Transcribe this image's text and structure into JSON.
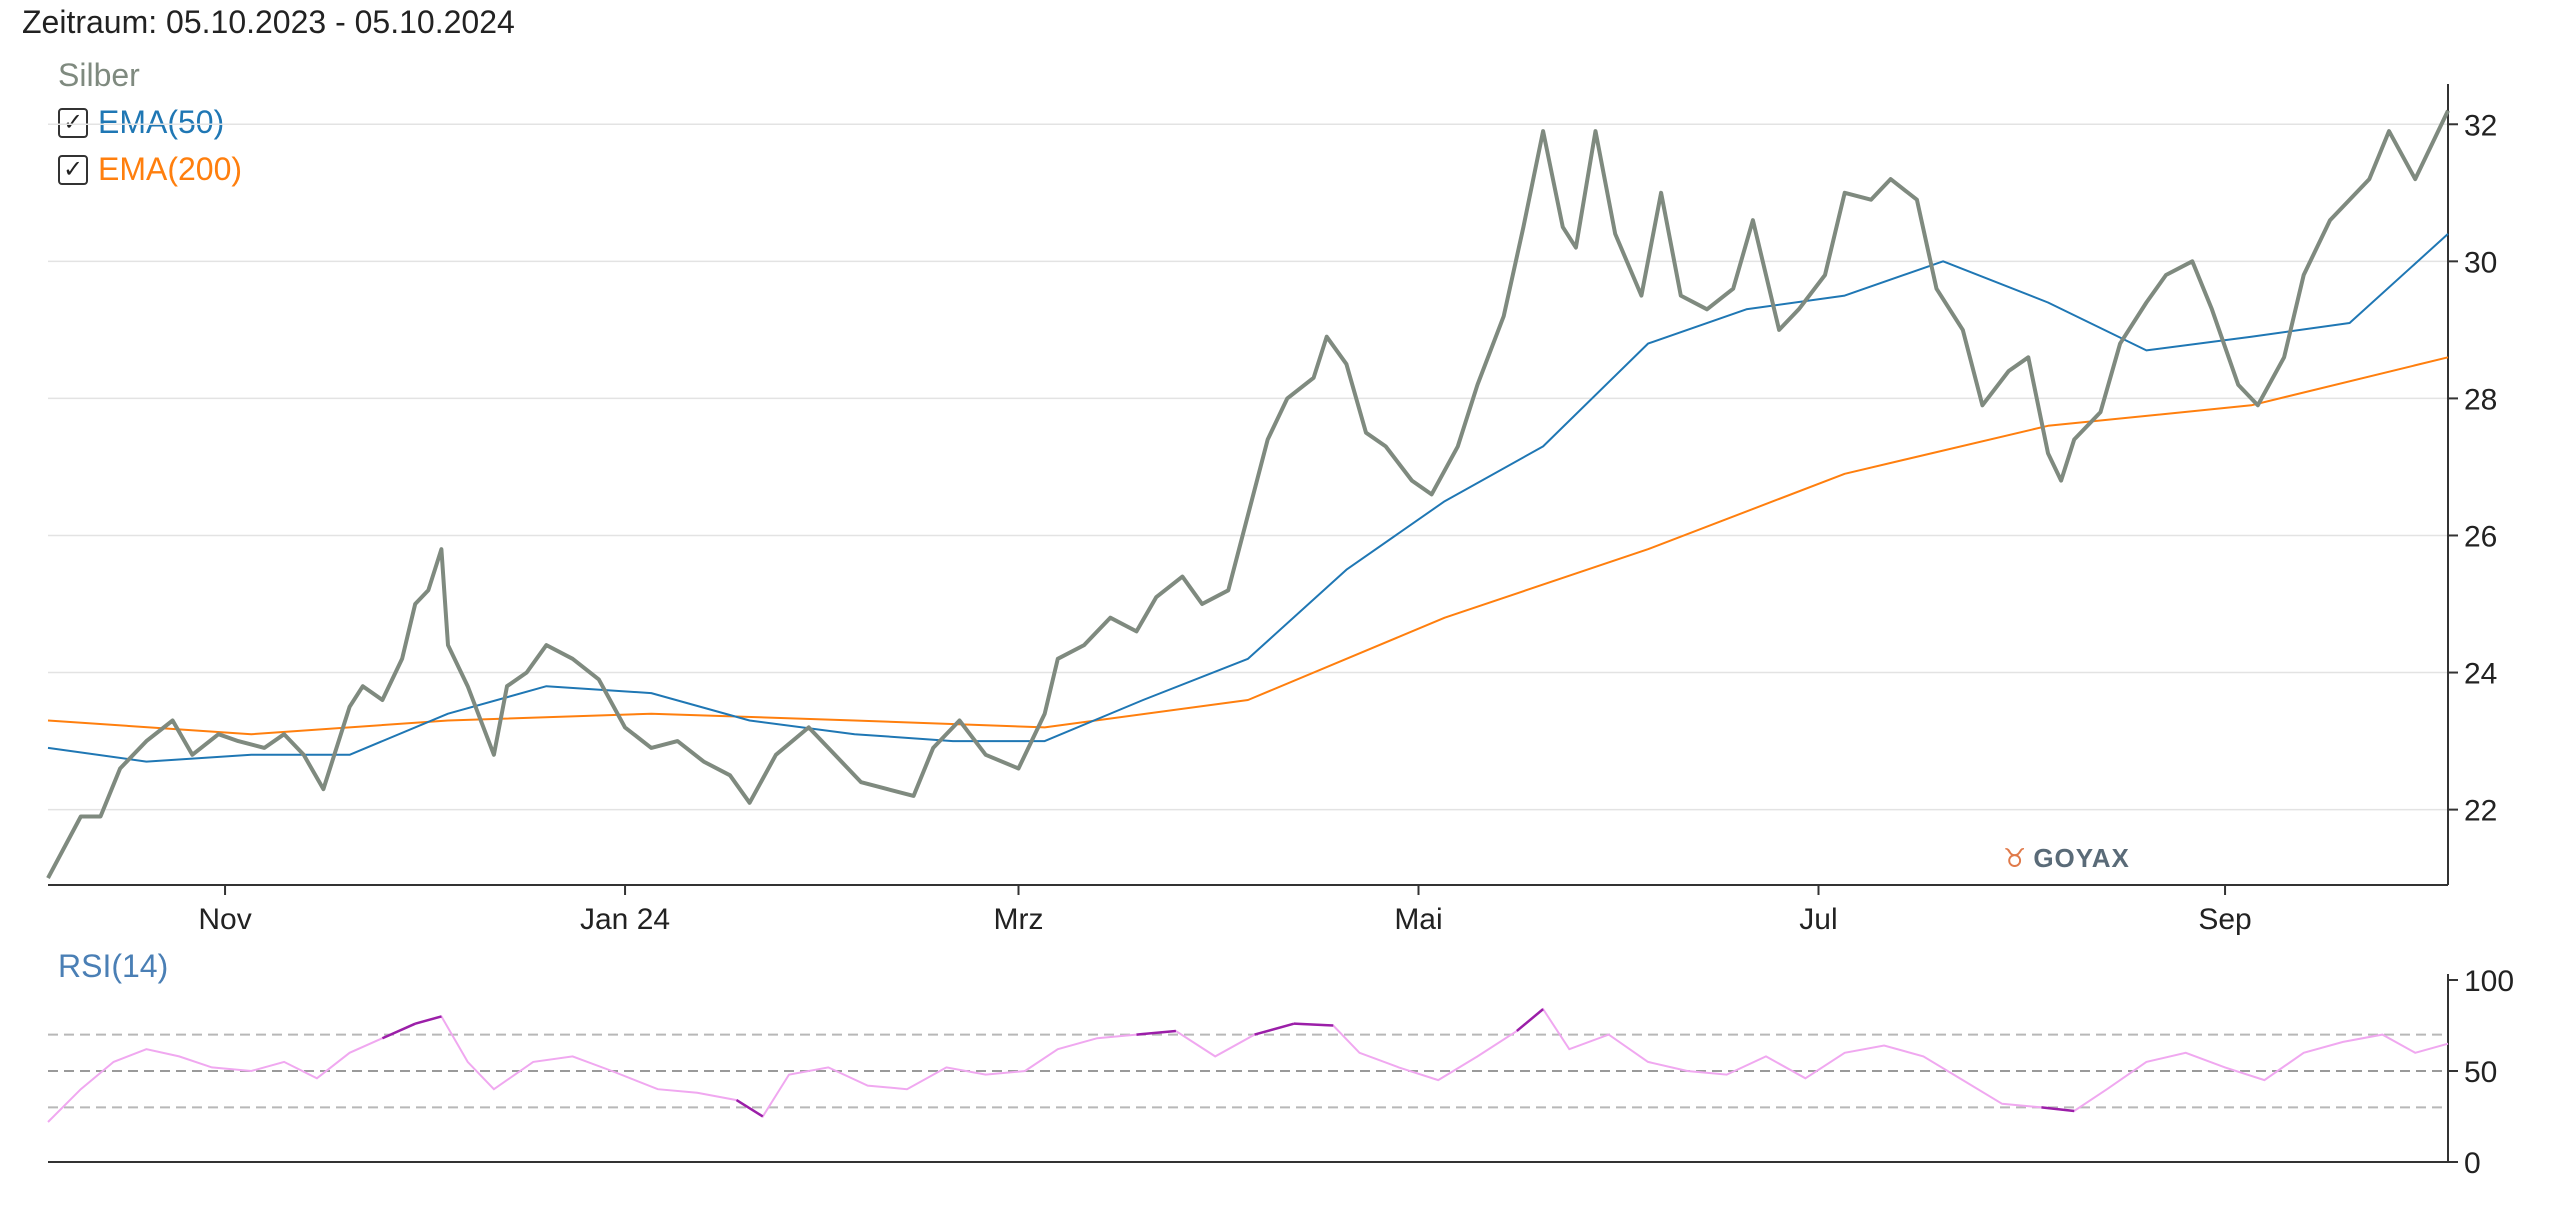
{
  "header": {
    "period": "Zeitraum: 05.10.2023 - 05.10.2024"
  },
  "legend": {
    "main": "Silber",
    "ema50": {
      "label": "EMA(50)",
      "checked": true,
      "color": "#1f77b4"
    },
    "ema200": {
      "label": "EMA(200)",
      "checked": true,
      "color": "#ff7f0e"
    }
  },
  "rsi_panel": {
    "label": "RSI(14)"
  },
  "watermark": {
    "text": "GOYAX",
    "icon": "bull-icon"
  },
  "colors": {
    "price": "#7f8a7f",
    "ema50": "#1f77b4",
    "ema200": "#ff7f0e",
    "rsi": "#f0a8f0",
    "rsi_extreme": "#9b1fa8",
    "grid": "#e3e3e3",
    "axis": "#333333"
  },
  "chart_data": [
    {
      "type": "line",
      "title": "Zeitraum: 05.10.2023 - 05.10.2024",
      "x_tick_labels": [
        "Nov",
        "Jan 24",
        "Mrz",
        "Mai",
        "Jul",
        "Sep"
      ],
      "y_tick_labels": [
        "22",
        "24",
        "26",
        "28",
        "30",
        "32"
      ],
      "ylim": [
        20.9,
        32.5
      ],
      "y_axis_position": "right",
      "grid": true,
      "legend_position": "top-left",
      "series": [
        {
          "name": "Silber",
          "color": "#7f8a7f",
          "points": [
            [
              "2023-10-05",
              21.0
            ],
            [
              "2023-10-10",
              21.9
            ],
            [
              "2023-10-13",
              21.9
            ],
            [
              "2023-10-16",
              22.6
            ],
            [
              "2023-10-20",
              23.0
            ],
            [
              "2023-10-24",
              23.3
            ],
            [
              "2023-10-27",
              22.8
            ],
            [
              "2023-10-31",
              23.1
            ],
            [
              "2023-11-03",
              23.0
            ],
            [
              "2023-11-07",
              22.9
            ],
            [
              "2023-11-10",
              23.1
            ],
            [
              "2023-11-13",
              22.8
            ],
            [
              "2023-11-16",
              22.3
            ],
            [
              "2023-11-20",
              23.5
            ],
            [
              "2023-11-22",
              23.8
            ],
            [
              "2023-11-25",
              23.6
            ],
            [
              "2023-11-28",
              24.2
            ],
            [
              "2023-11-30",
              25.0
            ],
            [
              "2023-12-02",
              25.2
            ],
            [
              "2023-12-04",
              25.8
            ],
            [
              "2023-12-05",
              24.4
            ],
            [
              "2023-12-08",
              23.8
            ],
            [
              "2023-12-12",
              22.8
            ],
            [
              "2023-12-14",
              23.8
            ],
            [
              "2023-12-17",
              24.0
            ],
            [
              "2023-12-20",
              24.4
            ],
            [
              "2023-12-24",
              24.2
            ],
            [
              "2023-12-28",
              23.9
            ],
            [
              "2024-01-01",
              23.2
            ],
            [
              "2024-01-05",
              22.9
            ],
            [
              "2024-01-09",
              23.0
            ],
            [
              "2024-01-13",
              22.7
            ],
            [
              "2024-01-17",
              22.5
            ],
            [
              "2024-01-20",
              22.1
            ],
            [
              "2024-01-24",
              22.8
            ],
            [
              "2024-01-29",
              23.2
            ],
            [
              "2024-02-02",
              22.8
            ],
            [
              "2024-02-06",
              22.4
            ],
            [
              "2024-02-10",
              22.3
            ],
            [
              "2024-02-14",
              22.2
            ],
            [
              "2024-02-17",
              22.9
            ],
            [
              "2024-02-21",
              23.3
            ],
            [
              "2024-02-25",
              22.8
            ],
            [
              "2024-03-01",
              22.6
            ],
            [
              "2024-03-05",
              23.4
            ],
            [
              "2024-03-07",
              24.2
            ],
            [
              "2024-03-11",
              24.4
            ],
            [
              "2024-03-15",
              24.8
            ],
            [
              "2024-03-19",
              24.6
            ],
            [
              "2024-03-22",
              25.1
            ],
            [
              "2024-03-26",
              25.4
            ],
            [
              "2024-03-29",
              25.0
            ],
            [
              "2024-04-02",
              25.2
            ],
            [
              "2024-04-05",
              26.3
            ],
            [
              "2024-04-08",
              27.4
            ],
            [
              "2024-04-11",
              28.0
            ],
            [
              "2024-04-15",
              28.3
            ],
            [
              "2024-04-17",
              28.9
            ],
            [
              "2024-04-20",
              28.5
            ],
            [
              "2024-04-23",
              27.5
            ],
            [
              "2024-04-26",
              27.3
            ],
            [
              "2024-04-30",
              26.8
            ],
            [
              "2024-05-03",
              26.6
            ],
            [
              "2024-05-07",
              27.3
            ],
            [
              "2024-05-10",
              28.2
            ],
            [
              "2024-05-14",
              29.2
            ],
            [
              "2024-05-17",
              30.5
            ],
            [
              "2024-05-20",
              31.9
            ],
            [
              "2024-05-23",
              30.5
            ],
            [
              "2024-05-25",
              30.2
            ],
            [
              "2024-05-28",
              31.9
            ],
            [
              "2024-05-31",
              30.4
            ],
            [
              "2024-06-04",
              29.5
            ],
            [
              "2024-06-07",
              31.0
            ],
            [
              "2024-06-10",
              29.5
            ],
            [
              "2024-06-14",
              29.3
            ],
            [
              "2024-06-18",
              29.6
            ],
            [
              "2024-06-21",
              30.6
            ],
            [
              "2024-06-25",
              29.0
            ],
            [
              "2024-06-28",
              29.3
            ],
            [
              "2024-07-02",
              29.8
            ],
            [
              "2024-07-05",
              31.0
            ],
            [
              "2024-07-09",
              30.9
            ],
            [
              "2024-07-12",
              31.2
            ],
            [
              "2024-07-16",
              30.9
            ],
            [
              "2024-07-19",
              29.6
            ],
            [
              "2024-07-23",
              29.0
            ],
            [
              "2024-07-26",
              27.9
            ],
            [
              "2024-07-30",
              28.4
            ],
            [
              "2024-08-02",
              28.6
            ],
            [
              "2024-08-05",
              27.2
            ],
            [
              "2024-08-07",
              26.8
            ],
            [
              "2024-08-09",
              27.4
            ],
            [
              "2024-08-13",
              27.8
            ],
            [
              "2024-08-16",
              28.8
            ],
            [
              "2024-08-20",
              29.4
            ],
            [
              "2024-08-23",
              29.8
            ],
            [
              "2024-08-27",
              30.0
            ],
            [
              "2024-08-30",
              29.3
            ],
            [
              "2024-09-03",
              28.2
            ],
            [
              "2024-09-06",
              27.9
            ],
            [
              "2024-09-10",
              28.6
            ],
            [
              "2024-09-13",
              29.8
            ],
            [
              "2024-09-17",
              30.6
            ],
            [
              "2024-09-20",
              30.9
            ],
            [
              "2024-09-23",
              31.2
            ],
            [
              "2024-09-26",
              31.9
            ],
            [
              "2024-09-30",
              31.2
            ],
            [
              "2024-10-03",
              31.8
            ],
            [
              "2024-10-05",
              32.2
            ]
          ]
        },
        {
          "name": "EMA(50)",
          "color": "#1f77b4",
          "points": [
            [
              "2023-10-05",
              22.9
            ],
            [
              "2023-10-20",
              22.7
            ],
            [
              "2023-11-05",
              22.8
            ],
            [
              "2023-11-20",
              22.8
            ],
            [
              "2023-12-05",
              23.4
            ],
            [
              "2023-12-20",
              23.8
            ],
            [
              "2024-01-05",
              23.7
            ],
            [
              "2024-01-20",
              23.3
            ],
            [
              "2024-02-05",
              23.1
            ],
            [
              "2024-02-20",
              23.0
            ],
            [
              "2024-03-05",
              23.0
            ],
            [
              "2024-03-20",
              23.6
            ],
            [
              "2024-04-05",
              24.2
            ],
            [
              "2024-04-20",
              25.5
            ],
            [
              "2024-05-05",
              26.5
            ],
            [
              "2024-05-20",
              27.3
            ],
            [
              "2024-06-05",
              28.8
            ],
            [
              "2024-06-20",
              29.3
            ],
            [
              "2024-07-05",
              29.5
            ],
            [
              "2024-07-20",
              30.0
            ],
            [
              "2024-08-05",
              29.4
            ],
            [
              "2024-08-20",
              28.7
            ],
            [
              "2024-09-05",
              28.9
            ],
            [
              "2024-09-20",
              29.1
            ],
            [
              "2024-10-05",
              30.4
            ]
          ]
        },
        {
          "name": "EMA(200)",
          "color": "#ff7f0e",
          "points": [
            [
              "2023-10-05",
              23.3
            ],
            [
              "2023-11-05",
              23.1
            ],
            [
              "2023-12-05",
              23.3
            ],
            [
              "2024-01-05",
              23.4
            ],
            [
              "2024-02-05",
              23.3
            ],
            [
              "2024-03-05",
              23.2
            ],
            [
              "2024-04-05",
              23.6
            ],
            [
              "2024-05-05",
              24.8
            ],
            [
              "2024-06-05",
              25.8
            ],
            [
              "2024-07-05",
              26.9
            ],
            [
              "2024-08-05",
              27.6
            ],
            [
              "2024-09-05",
              27.9
            ],
            [
              "2024-10-05",
              28.6
            ]
          ]
        }
      ]
    },
    {
      "type": "line",
      "title": "RSI(14)",
      "y_tick_labels": [
        "0",
        "50",
        "100"
      ],
      "ylim": [
        0,
        100
      ],
      "y_axis_position": "right",
      "reference_lines": [
        30,
        50,
        70
      ],
      "series": [
        {
          "name": "RSI(14)",
          "color": "#f0a8f0",
          "points": [
            [
              "2023-10-05",
              22
            ],
            [
              "2023-10-10",
              40
            ],
            [
              "2023-10-15",
              55
            ],
            [
              "2023-10-20",
              62
            ],
            [
              "2023-10-25",
              58
            ],
            [
              "2023-10-30",
              52
            ],
            [
              "2023-11-05",
              50
            ],
            [
              "2023-11-10",
              55
            ],
            [
              "2023-11-15",
              46
            ],
            [
              "2023-11-20",
              60
            ],
            [
              "2023-11-25",
              68
            ],
            [
              "2023-11-30",
              76
            ],
            [
              "2023-12-04",
              80
            ],
            [
              "2023-12-08",
              55
            ],
            [
              "2023-12-12",
              40
            ],
            [
              "2023-12-18",
              55
            ],
            [
              "2023-12-24",
              58
            ],
            [
              "2023-12-30",
              50
            ],
            [
              "2024-01-06",
              40
            ],
            [
              "2024-01-12",
              38
            ],
            [
              "2024-01-18",
              34
            ],
            [
              "2024-01-22",
              25
            ],
            [
              "2024-01-26",
              48
            ],
            [
              "2024-02-01",
              52
            ],
            [
              "2024-02-07",
              42
            ],
            [
              "2024-02-13",
              40
            ],
            [
              "2024-02-19",
              52
            ],
            [
              "2024-02-25",
              48
            ],
            [
              "2024-03-02",
              50
            ],
            [
              "2024-03-07",
              62
            ],
            [
              "2024-03-13",
              68
            ],
            [
              "2024-03-19",
              70
            ],
            [
              "2024-03-25",
              72
            ],
            [
              "2024-03-31",
              58
            ],
            [
              "2024-04-06",
              70
            ],
            [
              "2024-04-12",
              76
            ],
            [
              "2024-04-18",
              75
            ],
            [
              "2024-04-22",
              60
            ],
            [
              "2024-04-28",
              52
            ],
            [
              "2024-05-04",
              45
            ],
            [
              "2024-05-10",
              58
            ],
            [
              "2024-05-16",
              72
            ],
            [
              "2024-05-20",
              84
            ],
            [
              "2024-05-24",
              62
            ],
            [
              "2024-05-30",
              70
            ],
            [
              "2024-06-05",
              55
            ],
            [
              "2024-06-11",
              50
            ],
            [
              "2024-06-17",
              48
            ],
            [
              "2024-06-23",
              58
            ],
            [
              "2024-06-29",
              46
            ],
            [
              "2024-07-05",
              60
            ],
            [
              "2024-07-11",
              64
            ],
            [
              "2024-07-17",
              58
            ],
            [
              "2024-07-23",
              45
            ],
            [
              "2024-07-29",
              32
            ],
            [
              "2024-08-04",
              30
            ],
            [
              "2024-08-09",
              28
            ],
            [
              "2024-08-14",
              40
            ],
            [
              "2024-08-20",
              55
            ],
            [
              "2024-08-26",
              60
            ],
            [
              "2024-09-01",
              52
            ],
            [
              "2024-09-07",
              45
            ],
            [
              "2024-09-13",
              60
            ],
            [
              "2024-09-19",
              66
            ],
            [
              "2024-09-25",
              70
            ],
            [
              "2024-09-30",
              60
            ],
            [
              "2024-10-05",
              65
            ]
          ]
        }
      ]
    }
  ]
}
